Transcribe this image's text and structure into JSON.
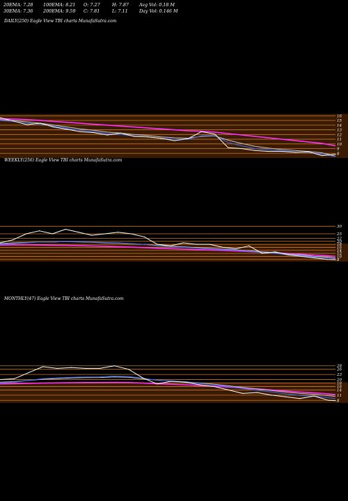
{
  "stats": {
    "ema20": "20EMA: 7.28",
    "ema30": "30EMA: 7.36",
    "ema100": "100EMA: 8.21",
    "ema200": "200EMA: 9.59",
    "open": "O: 7.27",
    "close": "C: 7.81",
    "high": "H: 7.87",
    "low": "L: 7.11",
    "avg_vol": "Avg Vol: 0.18  M",
    "day_vol": "Day Vol: 0.146  M"
  },
  "colors": {
    "price": "#ffffff",
    "grid": "#c87a2a",
    "ema_fast": "#3b6cff",
    "ema_slow": "#c8c8c8",
    "ema_long": "#ff30ff",
    "band": "#3a1a00"
  },
  "chart_data": [
    {
      "type": "line",
      "title": "DAILY(250) Eagle  View  TBI charts MunafaSutra.com",
      "y_ticks": [
        "16",
        "15",
        "14",
        "13",
        "12",
        "11",
        "10",
        "9",
        "8"
      ],
      "ylim": [
        7,
        16.5
      ],
      "x": [
        0,
        10,
        20,
        30,
        40,
        50,
        60,
        70,
        80,
        90,
        100,
        110,
        120,
        130,
        140,
        150,
        160,
        170,
        180,
        190,
        200,
        210,
        220,
        230,
        240,
        250
      ],
      "series": [
        {
          "role": "price",
          "values": [
            15.6,
            14.9,
            14.1,
            14.4,
            13.6,
            13.1,
            12.6,
            12.4,
            11.9,
            12.3,
            11.6,
            11.5,
            11.2,
            10.7,
            11.1,
            12.6,
            12.1,
            9.2,
            9.0,
            8.6,
            8.4,
            8.4,
            8.2,
            8.3,
            7.5,
            7.8
          ]
        },
        {
          "role": "ema_fast",
          "values": [
            15.0,
            14.8,
            14.4,
            14.2,
            13.8,
            13.3,
            12.9,
            12.6,
            12.2,
            12.0,
            11.7,
            11.5,
            11.2,
            11.0,
            11.0,
            11.7,
            11.8,
            10.3,
            9.6,
            9.0,
            8.7,
            8.5,
            8.3,
            8.2,
            7.8,
            7.3
          ]
        },
        {
          "role": "ema_slow",
          "values": [
            15.2,
            15.0,
            14.7,
            14.4,
            14.0,
            13.6,
            13.2,
            12.9,
            12.5,
            12.3,
            12.0,
            11.8,
            11.5,
            11.3,
            11.2,
            11.6,
            11.7,
            10.8,
            10.1,
            9.5,
            9.1,
            8.8,
            8.6,
            8.4,
            8.1,
            7.4
          ]
        },
        {
          "role": "ema_long",
          "values": [
            15.4,
            15.3,
            15.2,
            15.0,
            14.8,
            14.6,
            14.4,
            14.2,
            14.0,
            13.8,
            13.6,
            13.4,
            13.2,
            13.0,
            12.8,
            12.7,
            12.5,
            12.2,
            11.9,
            11.6,
            11.3,
            11.0,
            10.7,
            10.4,
            10.1,
            9.6
          ]
        }
      ]
    },
    {
      "type": "line",
      "title": "WEEKLY(256) Eagle  View  TBI charts MunafaSutra.com",
      "y_ticks": [
        "30",
        "25",
        "22",
        "20",
        "18",
        "16",
        "14",
        "12",
        "10",
        "8"
      ],
      "ylim": [
        6.5,
        31
      ],
      "x": [
        0,
        10,
        20,
        30,
        40,
        50,
        60,
        70,
        80,
        90,
        100,
        110,
        120,
        130,
        140,
        150,
        160,
        170,
        180,
        190,
        200,
        210,
        220,
        230,
        240,
        250,
        256
      ],
      "series": [
        {
          "role": "price",
          "values": [
            19,
            21,
            25,
            27,
            25,
            28,
            26,
            24,
            25,
            26,
            25,
            23,
            18,
            17,
            19,
            18,
            18,
            16,
            15,
            17,
            12,
            13,
            11,
            10,
            9,
            8,
            7.8
          ]
        },
        {
          "role": "ema_fast",
          "values": [
            18,
            18.5,
            19,
            19.5,
            19.5,
            19.8,
            19.8,
            19.5,
            19.2,
            19,
            18.5,
            18,
            17,
            16.5,
            16,
            15.5,
            15,
            14.5,
            14,
            13.5,
            12.5,
            12,
            11,
            10.5,
            9.5,
            9,
            8.5
          ]
        },
        {
          "role": "ema_slow",
          "values": [
            18.5,
            19,
            19.2,
            19.5,
            19.5,
            19.8,
            19.6,
            19.3,
            19,
            18.8,
            18.4,
            18,
            17.2,
            16.8,
            16.3,
            15.8,
            15.3,
            14.8,
            14.3,
            13.8,
            13,
            12.5,
            11.6,
            11,
            10,
            9.5,
            9
          ]
        },
        {
          "role": "ema_long",
          "values": [
            17.5,
            17.6,
            17.6,
            17.5,
            17.4,
            17.3,
            17.1,
            16.9,
            16.7,
            16.4,
            16.1,
            15.8,
            15.4,
            15.1,
            14.8,
            14.5,
            14.2,
            13.9,
            13.6,
            13.2,
            12.8,
            12.4,
            11.9,
            11.4,
            10.9,
            10.4,
            10
          ]
        }
      ]
    },
    {
      "type": "line",
      "title": "MONTHLY(47) Eagle  View  TBI charts MunafaSutra.com",
      "y_ticks": [
        "28",
        "26",
        "23",
        "20",
        "18",
        "16",
        "14",
        "11",
        "8"
      ],
      "ylim": [
        6.5,
        29.5
      ],
      "x": [
        0,
        2,
        4,
        6,
        8,
        10,
        12,
        14,
        16,
        18,
        20,
        22,
        24,
        26,
        28,
        30,
        32,
        34,
        36,
        38,
        40,
        42,
        44,
        46,
        47
      ],
      "series": [
        {
          "role": "price",
          "values": [
            20,
            20.5,
            24,
            27.5,
            26.5,
            27,
            26.5,
            26.5,
            28,
            26,
            21,
            17.5,
            19,
            18.5,
            17,
            16,
            14,
            12,
            12.5,
            11,
            10,
            9,
            10.5,
            8,
            7.8
          ]
        },
        {
          "role": "ema_fast",
          "values": [
            18,
            18.5,
            19.5,
            20.5,
            21,
            21.3,
            21.5,
            21.6,
            22,
            21.8,
            20.8,
            19.6,
            19.2,
            18.6,
            17.8,
            17,
            16,
            14.8,
            13.9,
            12.8,
            11.8,
            10.8,
            10.4,
            9.5,
            9
          ]
        },
        {
          "role": "ema_slow",
          "values": [
            18.5,
            18.8,
            19.5,
            20.2,
            20.6,
            20.9,
            21.1,
            21.2,
            21.5,
            21.3,
            20.5,
            19.6,
            19.2,
            18.7,
            18,
            17.3,
            16.4,
            15.4,
            14.6,
            13.7,
            12.8,
            12,
            11.5,
            10.7,
            10.2
          ]
        },
        {
          "role": "ema_long",
          "values": [
            17.5,
            17.6,
            17.8,
            18,
            18.1,
            18.2,
            18.3,
            18.3,
            18.4,
            18.3,
            18,
            17.6,
            17.3,
            17,
            16.6,
            16.2,
            15.7,
            15.1,
            14.6,
            14,
            13.4,
            12.8,
            12.3,
            11.7,
            11.3
          ]
        }
      ]
    }
  ]
}
